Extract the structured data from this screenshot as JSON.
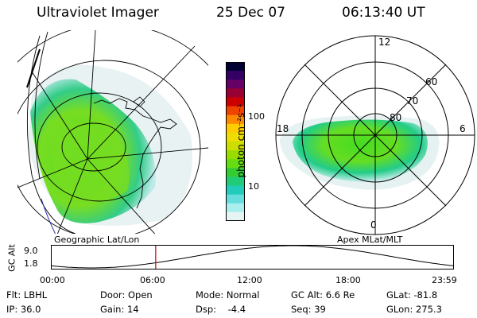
{
  "header": {
    "instrument": "Ultraviolet Imager",
    "date": "25 Dec 07",
    "time": "06:13:40 UT"
  },
  "geo_panel": {
    "label": "Geographic Lat/Lon"
  },
  "mag_panel": {
    "label": "Apex MLat/MLT",
    "mlt_labels": [
      "12",
      "18",
      "6",
      "0"
    ],
    "lat_labels": [
      "60",
      "70",
      "80"
    ]
  },
  "colorbar": {
    "unit": "photon cm⁻²s⁻¹",
    "ticks": [
      "100",
      "10"
    ],
    "colors": [
      "#000033",
      "#330066",
      "#660066",
      "#990033",
      "#cc0000",
      "#ee4400",
      "#ff8800",
      "#ffcc00",
      "#eedd00",
      "#ccdd00",
      "#99dd00",
      "#66dd11",
      "#33cc33",
      "#22cc77",
      "#22ccbb",
      "#66dddd",
      "#aaeeee",
      "#e6f4f4"
    ]
  },
  "altitude_plot": {
    "ylabel": "GC Alt",
    "yticks": [
      "9.0",
      "1.8"
    ],
    "xticks": [
      "00:00",
      "06:00",
      "12:00",
      "18:00",
      "23:59"
    ],
    "current_time_hours": 6.23,
    "marker_color": "#cc0000"
  },
  "info": {
    "filter": "Flt: LBHL",
    "door": "Door: Open",
    "mode": "Mode: Normal",
    "gc_alt": "GC Alt: 6.6 Re",
    "glat": "GLat: -81.8",
    "ip": "IP: 36.0",
    "gain": "Gain: 14",
    "dsp": "Dsp:    -4.4",
    "seq": "Seq: 39",
    "glon": "GLon: 275.3"
  }
}
